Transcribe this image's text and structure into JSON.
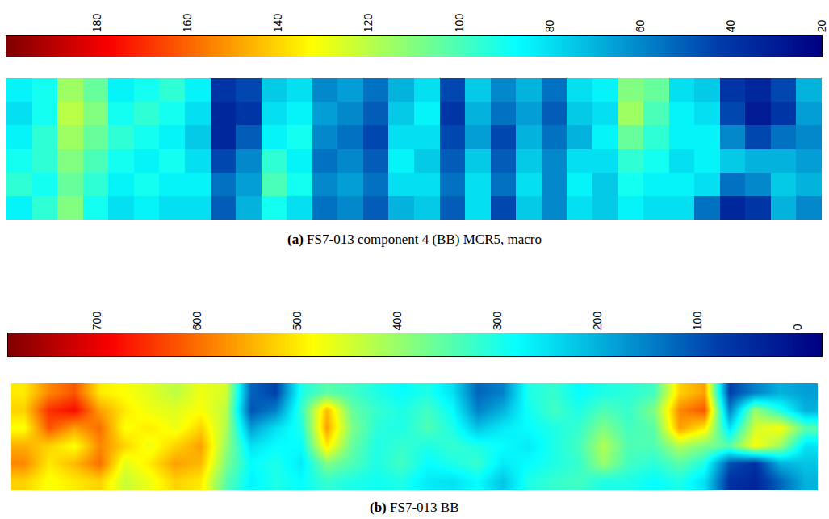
{
  "chart_data": [
    {
      "type": "heatmap",
      "title": "(a) FS7-013 component 4 (BB) MCR5, macro",
      "colorbar_lim": [
        20,
        200
      ],
      "colorbar_ticks": [
        180,
        160,
        140,
        120,
        100,
        80,
        60,
        40,
        20
      ],
      "tick_labels": false,
      "cells": [
        [
          85,
          90,
          115,
          105,
          85,
          90,
          95,
          85,
          40,
          45,
          75,
          80,
          60,
          65,
          55,
          70,
          80,
          45,
          75,
          60,
          70,
          55,
          80,
          85,
          110,
          105,
          80,
          75,
          40,
          35,
          45,
          70
        ],
        [
          80,
          90,
          120,
          110,
          90,
          95,
          90,
          80,
          35,
          40,
          80,
          85,
          65,
          60,
          50,
          75,
          85,
          40,
          70,
          55,
          65,
          50,
          75,
          80,
          115,
          100,
          85,
          80,
          45,
          30,
          40,
          65
        ],
        [
          85,
          95,
          115,
          105,
          95,
          90,
          85,
          75,
          35,
          50,
          85,
          90,
          60,
          55,
          45,
          80,
          80,
          45,
          65,
          45,
          70,
          55,
          70,
          85,
          105,
          95,
          85,
          85,
          60,
          45,
          55,
          60
        ],
        [
          90,
          95,
          110,
          100,
          90,
          85,
          90,
          80,
          45,
          60,
          95,
          85,
          55,
          60,
          50,
          85,
          75,
          50,
          75,
          50,
          75,
          60,
          80,
          80,
          95,
          90,
          80,
          85,
          75,
          70,
          70,
          65
        ],
        [
          95,
          90,
          105,
          95,
          85,
          90,
          85,
          85,
          55,
          65,
          100,
          90,
          60,
          65,
          55,
          80,
          80,
          55,
          80,
          55,
          80,
          60,
          85,
          75,
          90,
          85,
          85,
          80,
          55,
          60,
          75,
          70
        ],
        [
          85,
          95,
          110,
          90,
          80,
          85,
          80,
          80,
          50,
          70,
          90,
          80,
          55,
          60,
          50,
          70,
          75,
          50,
          80,
          45,
          75,
          60,
          80,
          75,
          85,
          80,
          80,
          55,
          35,
          40,
          70,
          60
        ]
      ]
    },
    {
      "type": "heatmap",
      "title": "(b) FS7-013 BB",
      "colorbar_lim": [
        -24,
        789
      ],
      "colorbar_ticks": [
        700,
        600,
        500,
        400,
        300,
        200,
        100,
        0
      ],
      "tick_labels": false,
      "cells": [
        [
          500,
          580,
          620,
          500,
          480,
          460,
          430,
          470,
          450,
          120,
          80,
          300,
          350,
          330,
          300,
          280,
          300,
          250,
          120,
          150,
          300,
          320,
          280,
          300,
          310,
          330,
          520,
          560,
          80,
          150,
          200,
          180
        ],
        [
          520,
          650,
          680,
          560,
          500,
          470,
          460,
          480,
          430,
          100,
          150,
          320,
          540,
          360,
          320,
          300,
          330,
          280,
          150,
          200,
          290,
          330,
          300,
          340,
          320,
          380,
          580,
          620,
          150,
          400,
          300,
          200
        ],
        [
          480,
          620,
          560,
          600,
          480,
          500,
          470,
          520,
          420,
          180,
          250,
          300,
          560,
          380,
          310,
          300,
          340,
          300,
          220,
          260,
          280,
          300,
          320,
          380,
          330,
          350,
          560,
          500,
          250,
          450,
          480,
          350
        ],
        [
          550,
          520,
          480,
          580,
          520,
          470,
          520,
          560,
          400,
          250,
          280,
          280,
          500,
          360,
          300,
          320,
          300,
          320,
          300,
          280,
          260,
          300,
          330,
          420,
          340,
          340,
          420,
          380,
          350,
          480,
          400,
          250
        ],
        [
          580,
          500,
          540,
          600,
          460,
          500,
          560,
          540,
          380,
          280,
          300,
          260,
          380,
          340,
          300,
          330,
          280,
          300,
          320,
          260,
          280,
          300,
          320,
          400,
          330,
          310,
          350,
          300,
          100,
          60,
          200,
          220
        ],
        [
          520,
          480,
          500,
          520,
          440,
          470,
          520,
          500,
          350,
          270,
          300,
          280,
          320,
          300,
          290,
          300,
          260,
          250,
          280,
          220,
          300,
          320,
          330,
          300,
          300,
          280,
          300,
          250,
          60,
          40,
          120,
          200
        ]
      ]
    }
  ]
}
